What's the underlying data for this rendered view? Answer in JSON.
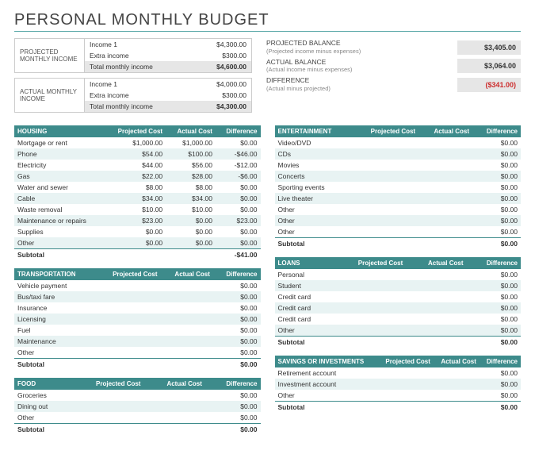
{
  "title": "PERSONAL MONTHLY BUDGET",
  "colors": {
    "teal": "#3d8b8b",
    "alt_row": "#e8f3f3",
    "gray_fill": "#e6e6e6",
    "rule": "#5aa8a8",
    "negative": "#cc2b2b"
  },
  "income": {
    "projected": {
      "label": "PROJECTED MONTHLY INCOME",
      "rows": [
        [
          "Income 1",
          "$4,300.00"
        ],
        [
          "Extra income",
          "$300.00"
        ]
      ],
      "total_label": "Total monthly income",
      "total": "$4,600.00"
    },
    "actual": {
      "label": "ACTUAL MONTHLY INCOME",
      "rows": [
        [
          "Income 1",
          "$4,000.00"
        ],
        [
          "Extra income",
          "$300.00"
        ]
      ],
      "total_label": "Total monthly income",
      "total": "$4,300.00"
    }
  },
  "balances": [
    {
      "title": "PROJECTED BALANCE",
      "sub": "(Projected income minus expenses)",
      "value": "$3,405.00",
      "neg": false
    },
    {
      "title": "ACTUAL BALANCE",
      "sub": "(Actual income minus expenses)",
      "value": "$3,064.00",
      "neg": false
    },
    {
      "title": "DIFFERENCE",
      "sub": "(Actual minus projected)",
      "value": "($341.00)",
      "neg": true
    }
  ],
  "headers": [
    "Projected Cost",
    "Actual Cost",
    "Difference"
  ],
  "left_tables": [
    {
      "title": "HOUSING",
      "rows": [
        [
          "Mortgage or rent",
          "$1,000.00",
          "$1,000.00",
          "$0.00"
        ],
        [
          "Phone",
          "$54.00",
          "$100.00",
          "-$46.00"
        ],
        [
          "Electricity",
          "$44.00",
          "$56.00",
          "-$12.00"
        ],
        [
          "Gas",
          "$22.00",
          "$28.00",
          "-$6.00"
        ],
        [
          "Water and sewer",
          "$8.00",
          "$8.00",
          "$0.00"
        ],
        [
          "Cable",
          "$34.00",
          "$34.00",
          "$0.00"
        ],
        [
          "Waste removal",
          "$10.00",
          "$10.00",
          "$0.00"
        ],
        [
          "Maintenance or repairs",
          "$23.00",
          "$0.00",
          "$23.00"
        ],
        [
          "Supplies",
          "$0.00",
          "$0.00",
          "$0.00"
        ],
        [
          "Other",
          "$0.00",
          "$0.00",
          "$0.00"
        ]
      ],
      "subtotal": [
        "",
        "",
        "-$41.00"
      ]
    },
    {
      "title": "TRANSPORTATION",
      "rows": [
        [
          "Vehicle payment",
          "",
          "",
          "$0.00"
        ],
        [
          "Bus/taxi fare",
          "",
          "",
          "$0.00"
        ],
        [
          "Insurance",
          "",
          "",
          "$0.00"
        ],
        [
          "Licensing",
          "",
          "",
          "$0.00"
        ],
        [
          "Fuel",
          "",
          "",
          "$0.00"
        ],
        [
          "Maintenance",
          "",
          "",
          "$0.00"
        ],
        [
          "Other",
          "",
          "",
          "$0.00"
        ]
      ],
      "subtotal": [
        "",
        "",
        "$0.00"
      ]
    },
    {
      "title": "FOOD",
      "rows": [
        [
          "Groceries",
          "",
          "",
          "$0.00"
        ],
        [
          "Dining out",
          "",
          "",
          "$0.00"
        ],
        [
          "Other",
          "",
          "",
          "$0.00"
        ]
      ],
      "subtotal": [
        "",
        "",
        "$0.00"
      ]
    }
  ],
  "right_tables": [
    {
      "title": "ENTERTAINMENT",
      "rows": [
        [
          "Video/DVD",
          "",
          "",
          "$0.00"
        ],
        [
          "CDs",
          "",
          "",
          "$0.00"
        ],
        [
          "Movies",
          "",
          "",
          "$0.00"
        ],
        [
          "Concerts",
          "",
          "",
          "$0.00"
        ],
        [
          "Sporting events",
          "",
          "",
          "$0.00"
        ],
        [
          "Live theater",
          "",
          "",
          "$0.00"
        ],
        [
          "Other",
          "",
          "",
          "$0.00"
        ],
        [
          "Other",
          "",
          "",
          "$0.00"
        ],
        [
          "Other",
          "",
          "",
          "$0.00"
        ]
      ],
      "subtotal": [
        "",
        "",
        "$0.00"
      ]
    },
    {
      "title": "LOANS",
      "rows": [
        [
          "Personal",
          "",
          "",
          "$0.00"
        ],
        [
          "Student",
          "",
          "",
          "$0.00"
        ],
        [
          "Credit card",
          "",
          "",
          "$0.00"
        ],
        [
          "Credit card",
          "",
          "",
          "$0.00"
        ],
        [
          "Credit card",
          "",
          "",
          "$0.00"
        ],
        [
          "Other",
          "",
          "",
          "$0.00"
        ]
      ],
      "subtotal": [
        "",
        "",
        "$0.00"
      ]
    },
    {
      "title": "SAVINGS OR INVESTMENTS",
      "rows": [
        [
          "Retirement account",
          "",
          "",
          "$0.00"
        ],
        [
          "Investment account",
          "",
          "",
          "$0.00"
        ],
        [
          "Other",
          "",
          "",
          "$0.00"
        ]
      ],
      "subtotal": [
        "",
        "",
        "$0.00"
      ]
    }
  ],
  "subtotal_label": "Subtotal"
}
